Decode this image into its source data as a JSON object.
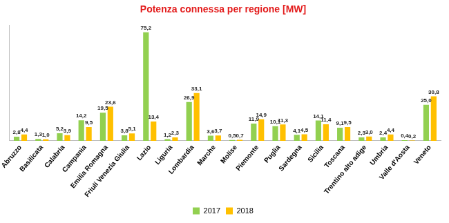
{
  "chart_data": {
    "type": "bar",
    "title": "Potenza connessa per regione [MW]",
    "categories": [
      "Abruzzo",
      "Basilicata",
      "Calabria",
      "Campania",
      "Emilia Romagna",
      "Friuli Venezia Giulia",
      "Lazio",
      "Liguria",
      "Lombardia",
      "Marche",
      "Molise",
      "Piemonte",
      "Puglia",
      "Sardegna",
      "Sicilia",
      "Toscana",
      "Trentino alto adige",
      "Umbria",
      "Valle d'Aosta",
      "Veneto"
    ],
    "series": [
      {
        "name": "2017",
        "color": "#92d050",
        "values": [
          2.8,
          1.3,
          5.2,
          14.2,
          19.5,
          3.8,
          75.2,
          1.2,
          26.9,
          3.6,
          0.5,
          11.9,
          10.1,
          4.1,
          14.1,
          9.1,
          2.3,
          2.4,
          0.4,
          25.0
        ],
        "value_labels": [
          "2,8",
          "1,3",
          "5,2",
          "14,2",
          "19,5",
          "3,8",
          "75,2",
          "1,2",
          "26,9",
          "3,6",
          "0,5",
          "11,9",
          "10,1",
          "4,1",
          "14,1",
          "9,1",
          "2,3",
          "2,4",
          "0,4",
          "25,0"
        ]
      },
      {
        "name": "2018",
        "color": "#ffc000",
        "values": [
          4.4,
          1.0,
          3.9,
          9.5,
          23.6,
          5.1,
          13.4,
          2.3,
          33.1,
          3.7,
          0.7,
          14.9,
          11.3,
          4.5,
          11.4,
          9.5,
          3.0,
          4.4,
          0.2,
          30.8
        ],
        "value_labels": [
          "4,4",
          "1,0",
          "3,9",
          "9,5",
          "23,6",
          "5,1",
          "13,4",
          "2,3",
          "33,1",
          "3,7",
          "0,7",
          "14,9",
          "11,3",
          "4,5",
          "11,4",
          "9,5",
          "3,0",
          "4,4",
          "0,2",
          "30,8"
        ]
      }
    ],
    "ylim": [
      0,
      80
    ],
    "grid": false,
    "legend": "bottom",
    "data_labels": true,
    "tick_labels": "x"
  }
}
